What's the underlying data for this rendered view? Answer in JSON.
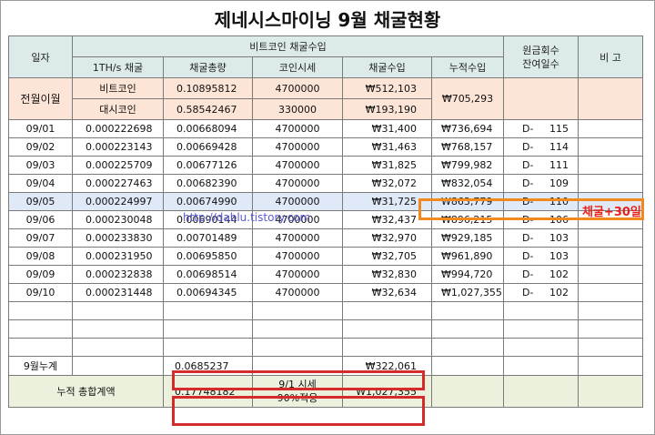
{
  "title": "제네시스마이닝 9월 채굴현황",
  "headers": {
    "date": "일자",
    "btc_group": "비트코인 채굴수입",
    "ths": "1TH/s 채굴",
    "total": "채굴총량",
    "price": "코인시세",
    "income": "채굴수입",
    "cumulative": "누적수입",
    "remain_line1": "원금회수",
    "remain_line2": "잔여일수",
    "note": "비 고"
  },
  "carryover": {
    "label": "전월이월",
    "rows": [
      {
        "coin": "비트코인",
        "total": "0.10895812",
        "price": "4700000",
        "income": "₩512,103"
      },
      {
        "coin": "대시코인",
        "total": "0.58542467",
        "price": "330000",
        "income": "₩193,190"
      }
    ],
    "cumulative": "₩705,293"
  },
  "rows": [
    {
      "date": "09/01",
      "ths": "0.000222698",
      "total": "0.00668094",
      "price": "4700000",
      "income": "₩31,400",
      "cumulative": "₩736,694",
      "d": "D-",
      "days": "115"
    },
    {
      "date": "09/02",
      "ths": "0.000223143",
      "total": "0.00669428",
      "price": "4700000",
      "income": "₩31,463",
      "cumulative": "₩768,157",
      "d": "D-",
      "days": "114"
    },
    {
      "date": "09/03",
      "ths": "0.000225709",
      "total": "0.00677126",
      "price": "4700000",
      "income": "₩31,825",
      "cumulative": "₩799,982",
      "d": "D-",
      "days": "111"
    },
    {
      "date": "09/04",
      "ths": "0.000227463",
      "total": "0.00682390",
      "price": "4700000",
      "income": "₩32,072",
      "cumulative": "₩832,054",
      "d": "D-",
      "days": "109"
    },
    {
      "date": "09/05",
      "ths": "0.000224997",
      "total": "0.00674990",
      "price": "4700000",
      "income": "₩31,725",
      "cumulative": "₩863,779",
      "d": "D-",
      "days": "110"
    },
    {
      "date": "09/06",
      "ths": "0.000230048",
      "total": "0.00690144",
      "price": "4700000",
      "income": "₩32,437",
      "cumulative": "₩896,215",
      "d": "D-",
      "days": "106"
    },
    {
      "date": "09/07",
      "ths": "0.000233830",
      "total": "0.00701489",
      "price": "4700000",
      "income": "₩32,970",
      "cumulative": "₩929,185",
      "d": "D-",
      "days": "103"
    },
    {
      "date": "09/08",
      "ths": "0.000231950",
      "total": "0.00695850",
      "price": "4700000",
      "income": "₩32,705",
      "cumulative": "₩961,890",
      "d": "D-",
      "days": "103"
    },
    {
      "date": "09/09",
      "ths": "0.000232838",
      "total": "0.00698514",
      "price": "4700000",
      "income": "₩32,830",
      "cumulative": "₩994,720",
      "d": "D-",
      "days": "102"
    },
    {
      "date": "09/10",
      "ths": "0.000231448",
      "total": "0.00694345",
      "price": "4700000",
      "income": "₩32,634",
      "cumulative": "₩1,027,355",
      "d": "D-",
      "days": "102"
    }
  ],
  "monthly": {
    "label": "9월누계",
    "total": "0.0685237",
    "income": "₩322,061"
  },
  "grand": {
    "label": "누적 총합계액",
    "total": "0.17748182",
    "price_line1": "9/1 시세",
    "price_line2": "90%적용",
    "income": "₩1,027,355"
  },
  "annotation": {
    "note": "채굴+30일",
    "watermark": "http://dablu.tistory.com"
  },
  "colors": {
    "header_bg": "#dcebe9",
    "carryover_bg": "#fce4d6",
    "footer_bg": "#ecf1de",
    "highlight_row": "#dfe9f7",
    "orange_box": "#f08a1f",
    "red_box": "#d52b2b",
    "note_text": "#e8221a"
  }
}
